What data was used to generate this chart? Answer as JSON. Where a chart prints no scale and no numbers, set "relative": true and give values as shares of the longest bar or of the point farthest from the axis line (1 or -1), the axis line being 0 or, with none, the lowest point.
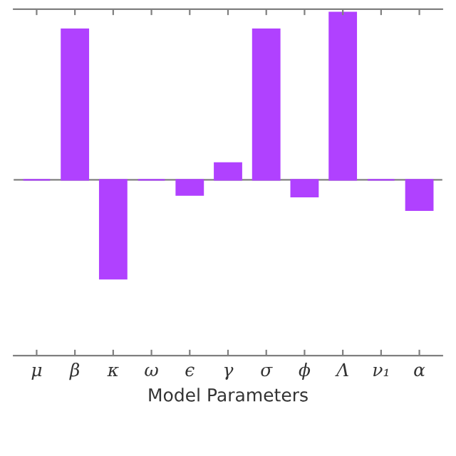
{
  "chart_data": {
    "type": "bar",
    "xlabel": "Model Parameters",
    "categories": [
      "μ",
      "β",
      "κ",
      "ω",
      "ϵ",
      "γ",
      "σ",
      "ϕ",
      "Λ",
      "ν₁",
      "α"
    ],
    "values": [
      0,
      0.9,
      -0.59,
      0,
      -0.09,
      0.1,
      0.9,
      -0.1,
      1,
      0,
      -0.18
    ],
    "color": "#b041ff",
    "relative": true,
    "grid": false,
    "legend": false
  }
}
